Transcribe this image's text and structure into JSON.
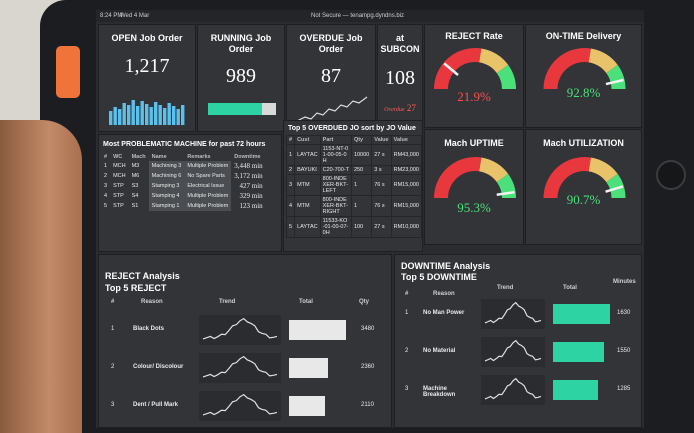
{
  "statusbar": {
    "time": "8:24 PM",
    "date": "Wed 4 Mar",
    "url": "Not Secure — tenampg.dyndns.biz"
  },
  "kpi": {
    "open": {
      "title": "OPEN Job Order",
      "value": "1,217"
    },
    "running": {
      "title": "RUNNING Job Order",
      "value": "989"
    },
    "overdue": {
      "title": "OVERDUE Job Order",
      "value": "87"
    },
    "subcon": {
      "title": "at SUBCON",
      "value": "108",
      "overdue_label": "Overdue",
      "overdue_value": "27"
    }
  },
  "gauges": {
    "reject_rate": {
      "title": "REJECT Rate",
      "value": "21.9%",
      "fraction": 0.22,
      "color": "#ff4d4d"
    },
    "on_time": {
      "title": "ON-TIME Delivery",
      "value": "92.8%",
      "fraction": 0.928,
      "color": "#4be07a"
    },
    "uptime": {
      "title": "Mach UPTIME",
      "value": "95.3%",
      "fraction": 0.953,
      "color": "#4be07a"
    },
    "utilization": {
      "title": "Mach UTILIZATION",
      "value": "90.7%",
      "fraction": 0.907,
      "color": "#4be07a"
    }
  },
  "problem_machines": {
    "title": "Most PROBLEMATIC MACHINE for past 72 hours",
    "headers": [
      "#",
      "WC",
      "Mach",
      "Name",
      "Remarks",
      "Downtime"
    ],
    "rows": [
      [
        "1",
        "MCH",
        "M3",
        "Machining 3",
        "Multiple Problem",
        "3,448 min"
      ],
      [
        "2",
        "MCH",
        "M6",
        "Machining 6",
        "No Spare Parts",
        "3,172 min"
      ],
      [
        "3",
        "STP",
        "S3",
        "Stamping 3",
        "Electrical Issue",
        "427 min"
      ],
      [
        "4",
        "STP",
        "S4",
        "Stamping 4",
        "Multiple Problem",
        "329 min"
      ],
      [
        "5",
        "STP",
        "S1",
        "Stamping 1",
        "Multiple Problem",
        "123 min"
      ]
    ]
  },
  "overdue_jo": {
    "title": "Top 5 OVERDUED JO sort by JO Value",
    "headers": [
      "#",
      "Cust",
      "Part",
      "Qty",
      "Value",
      "Value"
    ],
    "rows": [
      [
        "1",
        "LAYTAC",
        "1153-NT-01-00-05-0H",
        "10000",
        "27 s",
        "RM43,000"
      ],
      [
        "2",
        "BAYUKI",
        "C20-700-T",
        "250",
        "3 s",
        "RM23,000"
      ],
      [
        "3",
        "MTM",
        "800-INDEXER-BKT-LEFT",
        "1",
        "76 s",
        "RM15,000"
      ],
      [
        "4",
        "MTM",
        "800-INDEXER-BKT-RIGHT",
        "1",
        "76 s",
        "RM15,000"
      ],
      [
        "5",
        "LAYTAC",
        "11533-KO-01-00-07-0H",
        "100",
        "27 s",
        "RM10,000"
      ]
    ]
  },
  "reject": {
    "title1": "REJECT Analysis",
    "title2": "Top 5 REJECT",
    "headers": {
      "num": "#",
      "reason": "Reason",
      "trend": "Trend",
      "total": "Total",
      "qty": "Qty"
    },
    "rows": [
      {
        "num": "1",
        "reason": "Black Dots",
        "qty": "3480",
        "bar": 0.95
      },
      {
        "num": "2",
        "reason": "Colour/ Discolour",
        "qty": "2360",
        "bar": 0.65
      },
      {
        "num": "3",
        "reason": "Dent / Pull Mark",
        "qty": "2110",
        "bar": 0.6
      }
    ]
  },
  "downtime": {
    "title1": "DOWNTIME Analysis",
    "title2": "Top 5 DOWNTIME",
    "headers": {
      "num": "#",
      "reason": "Reason",
      "trend": "Trend",
      "total": "Total",
      "minutes": "Minutes"
    },
    "rows": [
      {
        "num": "1",
        "reason": "No Man Power",
        "minutes": "1630",
        "bar": 0.95
      },
      {
        "num": "2",
        "reason": "No Material",
        "minutes": "1550",
        "bar": 0.85
      },
      {
        "num": "3",
        "reason": "Machine Breakdown",
        "minutes": "1285",
        "bar": 0.75
      }
    ]
  },
  "case_label": "ugreen"
}
